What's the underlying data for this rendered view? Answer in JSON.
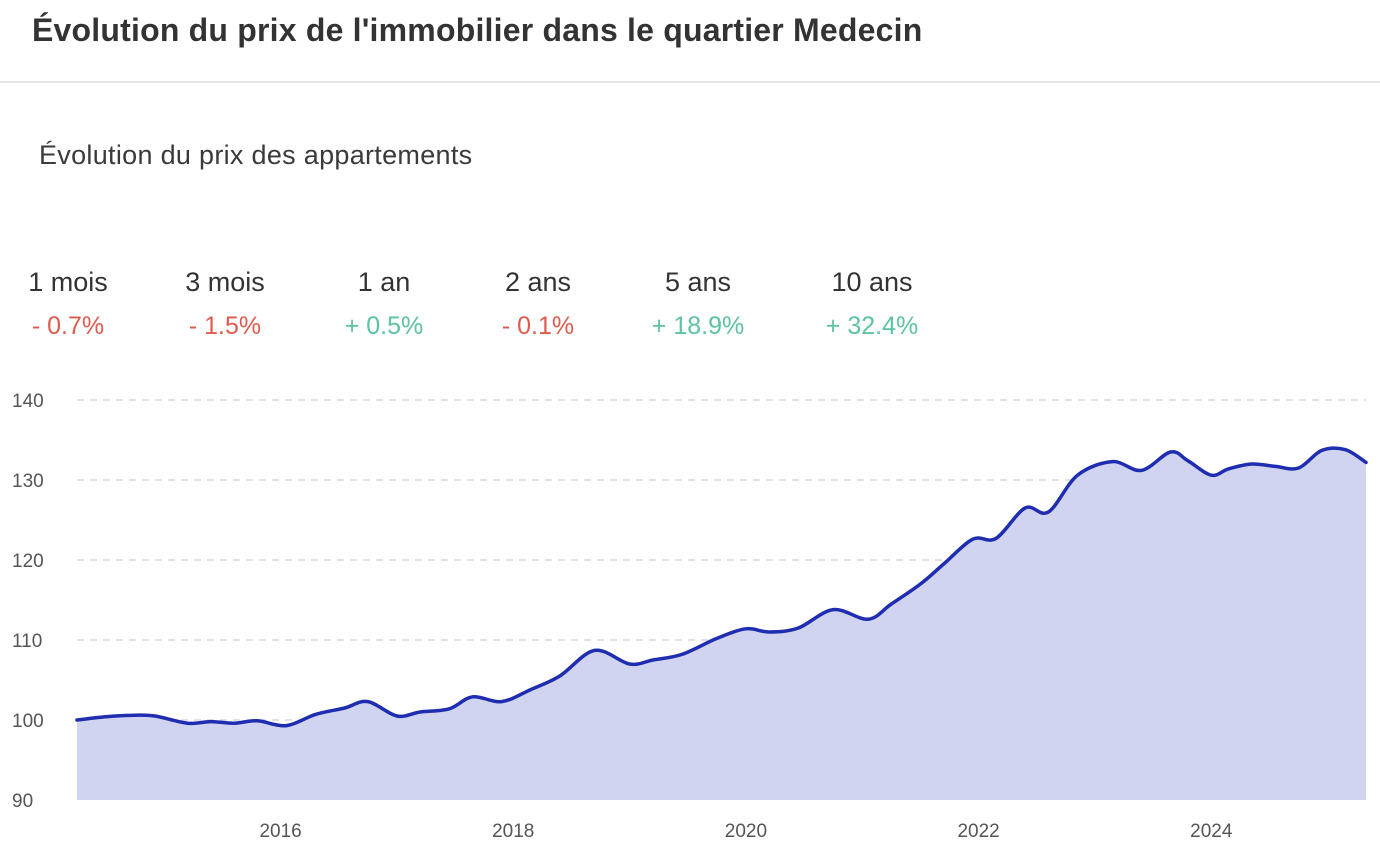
{
  "page": {
    "title": "Évolution du prix de l'immobilier dans le quartier Medecin"
  },
  "chart_subtitle": "Évolution du prix des appartements",
  "stats": [
    {
      "label": "1 mois",
      "value": "- 0.7%",
      "trend": "down"
    },
    {
      "label": "3 mois",
      "value": "- 1.5%",
      "trend": "down"
    },
    {
      "label": "1 an",
      "value": "+ 0.5%",
      "trend": "up"
    },
    {
      "label": "2 ans",
      "value": "- 0.1%",
      "trend": "down"
    },
    {
      "label": "5 ans",
      "value": "+ 18.9%",
      "trend": "up"
    },
    {
      "label": "10 ans",
      "value": "+ 32.4%",
      "trend": "up"
    }
  ],
  "colors": {
    "down": "#e05a4e",
    "up": "#5cc39f",
    "line": "#1f2db0",
    "fill": "#d0d4f0",
    "grid": "#d9d9d9",
    "tick": "#555555"
  },
  "chart_data": {
    "type": "area",
    "title": "Évolution du prix des appartements",
    "xlabel": "",
    "ylabel": "",
    "xlim": [
      2014.25,
      2025.33
    ],
    "ylim": [
      90,
      140
    ],
    "yticks": [
      90,
      100,
      110,
      120,
      130,
      140
    ],
    "xticks": [
      2016,
      2018,
      2020,
      2022,
      2024
    ],
    "grid": "horizontal dashed",
    "series": [
      {
        "x": [
          2014.25,
          2014.5,
          2014.75,
          2014.92,
          2015.2,
          2015.4,
          2015.6,
          2015.8,
          2016.05,
          2016.3,
          2016.55,
          2016.75,
          2017.0,
          2017.2,
          2017.45,
          2017.65,
          2017.9,
          2018.15,
          2018.4,
          2018.7,
          2019.0,
          2019.2,
          2019.45,
          2019.75,
          2020.0,
          2020.2,
          2020.45,
          2020.75,
          2021.05,
          2021.25,
          2021.5,
          2021.7,
          2021.95,
          2022.15,
          2022.4,
          2022.6,
          2022.85,
          2023.15,
          2023.4,
          2023.65,
          2023.8,
          2024.0,
          2024.15,
          2024.35,
          2024.55,
          2024.75,
          2024.95,
          2025.15,
          2025.33
        ],
        "y": [
          100.0,
          100.4,
          100.6,
          100.5,
          99.6,
          99.8,
          99.6,
          99.9,
          99.3,
          100.7,
          101.5,
          102.3,
          100.5,
          101.0,
          101.4,
          102.9,
          102.3,
          103.8,
          105.5,
          108.7,
          107.0,
          107.5,
          108.2,
          110.2,
          111.4,
          111.0,
          111.5,
          113.8,
          112.6,
          114.5,
          117.0,
          119.5,
          122.6,
          122.7,
          126.5,
          126.0,
          130.6,
          132.3,
          131.2,
          133.5,
          132.4,
          130.6,
          131.4,
          132.0,
          131.7,
          131.5,
          133.7,
          133.8,
          132.2
        ]
      }
    ]
  }
}
